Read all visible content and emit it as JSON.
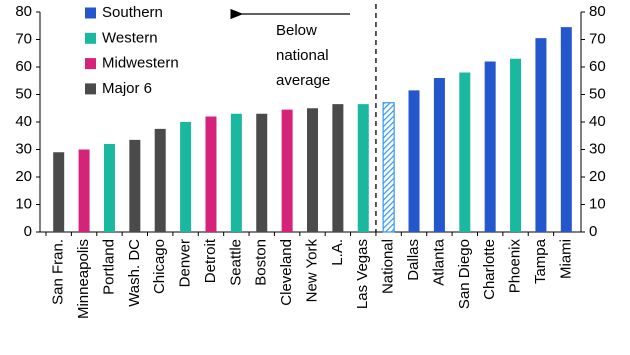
{
  "chart_data": {
    "type": "bar",
    "categories": [
      "San Fran.",
      "Minneapolis",
      "Portland",
      "Wash. DC",
      "Chicago",
      "Denver",
      "Detroit",
      "Seattle",
      "Boston",
      "Cleveland",
      "New York",
      "L.A.",
      "Las Vegas",
      "National",
      "Dallas",
      "Atlanta",
      "San Diego",
      "Charlotte",
      "Phoenix",
      "Tampa",
      "Miami"
    ],
    "values": [
      29,
      30,
      32,
      33.5,
      37.5,
      40,
      42,
      43,
      43,
      44.5,
      45,
      46.5,
      46.5,
      47,
      51.5,
      56,
      58,
      62,
      63,
      70.5,
      74.5
    ],
    "colors": [
      "#4a4a4a",
      "#d6237a",
      "#1bb8a0",
      "#4a4a4a",
      "#4a4a4a",
      "#1bb8a0",
      "#d6237a",
      "#1bb8a0",
      "#4a4a4a",
      "#d6237a",
      "#4a4a4a",
      "#4a4a4a",
      "#1bb8a0",
      "#3399ee",
      "#2457cc",
      "#2457cc",
      "#1bb8a0",
      "#2457cc",
      "#1bb8a0",
      "#2457cc",
      "#2457cc"
    ],
    "hatched": [
      13
    ],
    "legend": [
      {
        "name": "Southern",
        "color": "#2457cc"
      },
      {
        "name": "Western",
        "color": "#1bb8a0"
      },
      {
        "name": "Midwestern",
        "color": "#d6237a"
      },
      {
        "name": "Major 6",
        "color": "#4a4a4a"
      }
    ],
    "annotation": [
      "Below",
      "national",
      "average"
    ],
    "ylim": [
      0,
      80
    ],
    "yticks": [
      0,
      10,
      20,
      30,
      40,
      50,
      60,
      70,
      80
    ],
    "y2lim": [
      0,
      80
    ],
    "y2ticks": [
      0,
      10,
      20,
      30,
      40,
      50,
      60,
      70,
      80
    ]
  }
}
